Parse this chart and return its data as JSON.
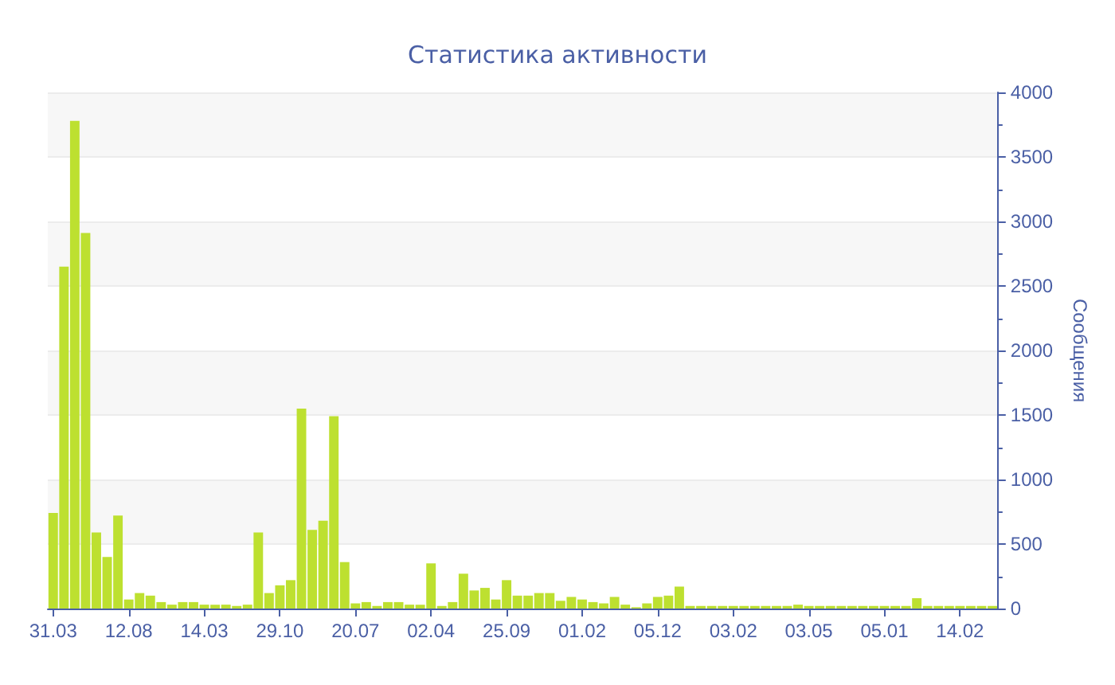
{
  "chart_data": {
    "type": "bar",
    "title": "Статистика активности",
    "ylabel": "Сообщения",
    "categories": [
      "31.03",
      null,
      null,
      null,
      null,
      null,
      null,
      "12.08",
      null,
      null,
      null,
      null,
      null,
      null,
      "14.03",
      null,
      null,
      null,
      null,
      null,
      null,
      "29.10",
      null,
      null,
      null,
      null,
      null,
      null,
      "20.07",
      null,
      null,
      null,
      null,
      null,
      null,
      "02.04",
      null,
      null,
      null,
      null,
      null,
      null,
      "25.09",
      null,
      null,
      null,
      null,
      null,
      null,
      "01.02",
      null,
      null,
      null,
      null,
      null,
      null,
      "05.12",
      null,
      null,
      null,
      null,
      null,
      null,
      "03.02",
      null,
      null,
      null,
      null,
      null,
      null,
      "03.05",
      null,
      null,
      null,
      null,
      null,
      null,
      "05.01",
      null,
      null,
      null,
      null,
      null,
      null,
      "14.02",
      null,
      null,
      null
    ],
    "values": [
      740,
      2650,
      3780,
      2910,
      590,
      400,
      720,
      70,
      120,
      100,
      50,
      30,
      50,
      50,
      30,
      30,
      30,
      20,
      30,
      590,
      120,
      180,
      220,
      1550,
      610,
      680,
      1490,
      360,
      40,
      50,
      20,
      50,
      50,
      30,
      30,
      350,
      20,
      50,
      270,
      140,
      160,
      70,
      220,
      100,
      100,
      120,
      120,
      60,
      90,
      70,
      50,
      40,
      90,
      30,
      10,
      40,
      90,
      100,
      170,
      20,
      20,
      20,
      20,
      20,
      20,
      20,
      20,
      20,
      20,
      30,
      20,
      20,
      20,
      20,
      20,
      20,
      20,
      20,
      20,
      20,
      80,
      20,
      20,
      20,
      20,
      20,
      20,
      20
    ],
    "color": "#bde030",
    "ylim": [
      0,
      4000
    ],
    "yticks": [
      0,
      500,
      1000,
      1500,
      2000,
      2500,
      3000,
      3500,
      4000
    ],
    "grid": "y"
  }
}
